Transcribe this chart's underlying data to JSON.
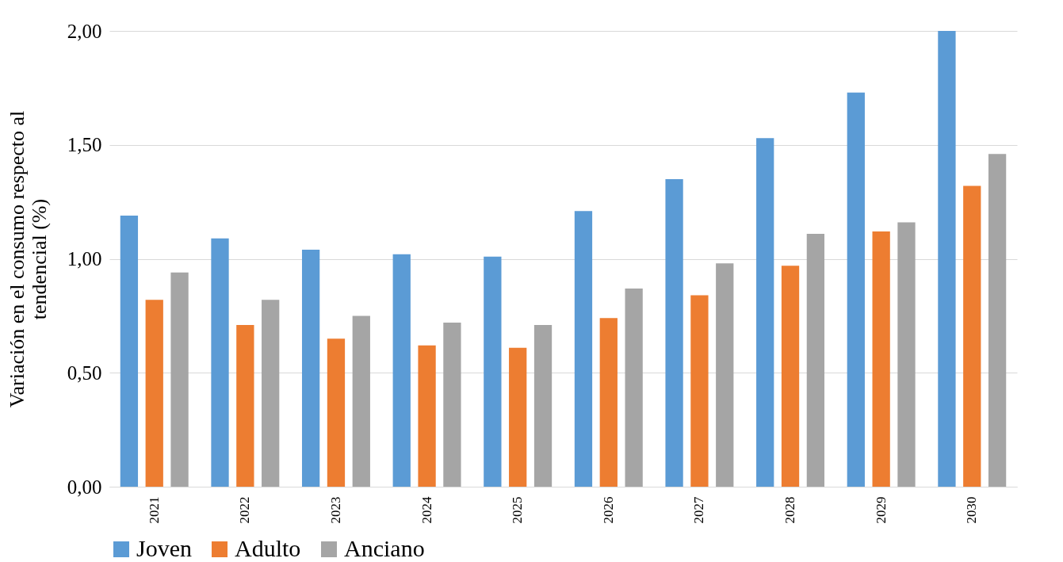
{
  "chart_data": {
    "type": "bar",
    "ylabel": "Variación en el consumo respecto al tendencial (%)",
    "categories": [
      "2021",
      "2022",
      "2023",
      "2024",
      "2025",
      "2026",
      "2027",
      "2028",
      "2029",
      "2030"
    ],
    "series": [
      {
        "name": "Joven",
        "color": "#5b9bd5",
        "values": [
          1.19,
          1.09,
          1.04,
          1.02,
          1.01,
          1.21,
          1.35,
          1.53,
          1.73,
          2.0
        ]
      },
      {
        "name": "Adulto",
        "color": "#ed7d31",
        "values": [
          0.82,
          0.71,
          0.65,
          0.62,
          0.61,
          0.74,
          0.84,
          0.97,
          1.12,
          1.32
        ]
      },
      {
        "name": "Anciano",
        "color": "#a5a5a5",
        "values": [
          0.94,
          0.82,
          0.75,
          0.72,
          0.71,
          0.87,
          0.98,
          1.11,
          1.16,
          1.46
        ]
      }
    ],
    "ylim": [
      0,
      2
    ],
    "yticks": [
      {
        "value": 0,
        "label": "0,00"
      },
      {
        "value": 0.5,
        "label": "0,50"
      },
      {
        "value": 1,
        "label": "1,00"
      },
      {
        "value": 1.5,
        "label": "1,50"
      },
      {
        "value": 2,
        "label": "2,00"
      }
    ],
    "grid": "y",
    "legend": "bottom"
  }
}
